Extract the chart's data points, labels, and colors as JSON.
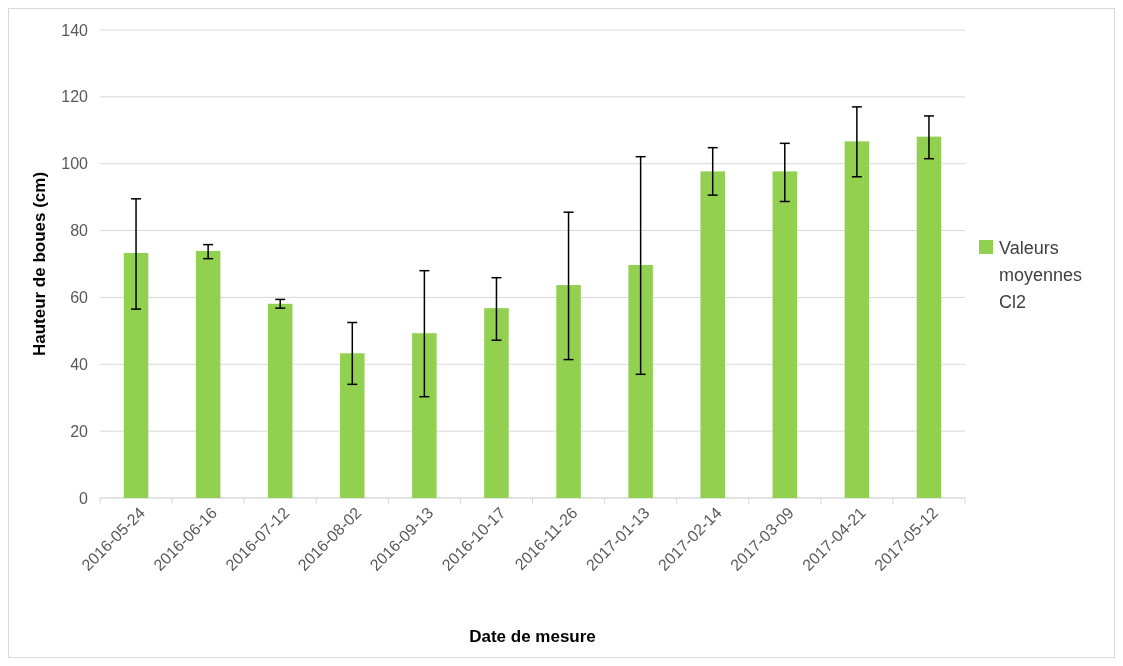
{
  "chart_data": {
    "type": "bar",
    "xlabel": "Date de mesure",
    "ylabel": "Hauteur de boues (cm)",
    "categories": [
      "2016-05-24",
      "2016-06-16",
      "2016-07-12",
      "2016-08-02",
      "2016-09-13",
      "2016-10-17",
      "2016-11-26",
      "2017-01-13",
      "2017-02-14",
      "2017-03-09",
      "2017-04-21",
      "2017-05-12"
    ],
    "series": [
      {
        "name": "Valeurs moyennes Cl2",
        "color": "#92d050",
        "values": [
          73.3,
          73.9,
          58.1,
          43.3,
          49.3,
          56.8,
          63.7,
          69.7,
          97.7,
          97.7,
          106.7,
          108.1
        ],
        "errors": [
          [
            56.5,
            89.5
          ],
          [
            71.6,
            75.8
          ],
          [
            56.8,
            59.4
          ],
          [
            34,
            52.5
          ],
          [
            30.3,
            68
          ],
          [
            47.2,
            65.9
          ],
          [
            41.4,
            85.5
          ],
          [
            37,
            102.1
          ],
          [
            90.6,
            104.8
          ],
          [
            88.7,
            106.1
          ],
          [
            96.1,
            117
          ],
          [
            101.5,
            114.3
          ]
        ]
      }
    ],
    "ylim": [
      0,
      140
    ],
    "yticks": [
      0,
      20,
      40,
      60,
      80,
      100,
      120,
      140
    ],
    "grid": "y",
    "legend": "right"
  }
}
